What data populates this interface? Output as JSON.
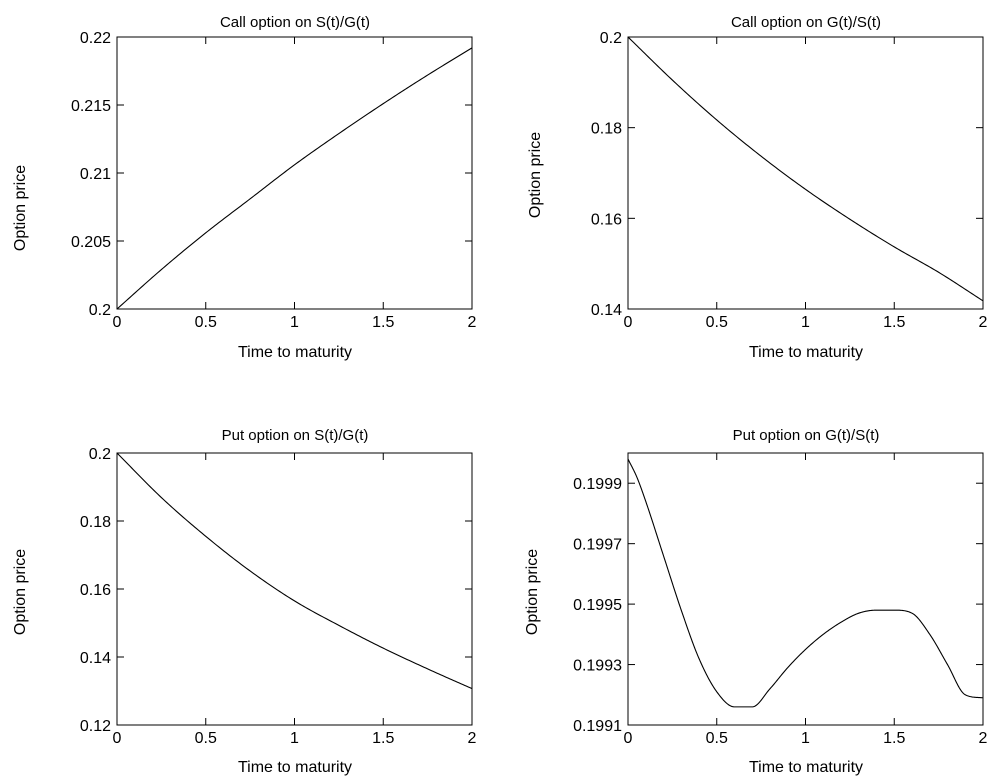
{
  "chart_data": [
    {
      "type": "line",
      "title": "Call option on S(t)/G(t)",
      "xlabel": "Time to maturity",
      "ylabel": "Option price",
      "xlim": [
        0,
        2
      ],
      "ylim": [
        0.2,
        0.22
      ],
      "xticks": [
        0,
        0.5,
        1,
        1.5,
        2
      ],
      "xtick_labels": [
        "0",
        "0.5",
        "1",
        "1.5",
        "2"
      ],
      "yticks": [
        0.2,
        0.205,
        0.21,
        0.215,
        0.22
      ],
      "ytick_labels": [
        "0.2",
        "0.205",
        "0.21",
        "0.215",
        "0.22"
      ],
      "grid": false,
      "series": [
        {
          "x": [
            0,
            0.25,
            0.5,
            0.75,
            1,
            1.25,
            1.5,
            1.75,
            2
          ],
          "y": [
            0.2,
            0.2029,
            0.2056,
            0.2081,
            0.2106,
            0.2129,
            0.2151,
            0.2172,
            0.2192
          ]
        }
      ]
    },
    {
      "type": "line",
      "title": "Call option on G(t)/S(t)",
      "xlabel": "Time to maturity",
      "ylabel": "Option price",
      "xlim": [
        0,
        2
      ],
      "ylim": [
        0.14,
        0.2
      ],
      "xticks": [
        0,
        0.5,
        1,
        1.5,
        2
      ],
      "xtick_labels": [
        "0",
        "0.5",
        "1",
        "1.5",
        "2"
      ],
      "yticks": [
        0.14,
        0.16,
        0.18,
        0.2
      ],
      "ytick_labels": [
        "0.14",
        "0.16",
        "0.18",
        "0.2"
      ],
      "grid": false,
      "series": [
        {
          "x": [
            0,
            0.25,
            0.5,
            0.75,
            1,
            1.25,
            1.5,
            1.75,
            2
          ],
          "y": [
            0.2,
            0.1905,
            0.1817,
            0.1737,
            0.1664,
            0.1598,
            0.1537,
            0.1481,
            0.1418
          ]
        }
      ]
    },
    {
      "type": "line",
      "title": "Put option on S(t)/G(t)",
      "xlabel": "Time to maturity",
      "ylabel": "Option price",
      "xlim": [
        0,
        2
      ],
      "ylim": [
        0.12,
        0.2
      ],
      "xticks": [
        0,
        0.5,
        1,
        1.5,
        2
      ],
      "xtick_labels": [
        "0",
        "0.5",
        "1",
        "1.5",
        "2"
      ],
      "yticks": [
        0.12,
        0.14,
        0.16,
        0.18,
        0.2
      ],
      "ytick_labels": [
        "0.12",
        "0.14",
        "0.16",
        "0.18",
        "0.2"
      ],
      "grid": false,
      "series": [
        {
          "x": [
            0,
            0.25,
            0.5,
            0.75,
            1,
            1.25,
            1.5,
            1.75,
            2
          ],
          "y": [
            0.2,
            0.1869,
            0.1755,
            0.1653,
            0.1565,
            0.1493,
            0.1426,
            0.1365,
            0.1307
          ]
        }
      ]
    },
    {
      "type": "line",
      "title": "Put option on G(t)/S(t)",
      "xlabel": "Time to maturity",
      "ylabel": "Option price",
      "xlim": [
        0,
        2
      ],
      "ylim": [
        0.1991,
        0.2
      ],
      "xticks": [
        0,
        0.5,
        1,
        1.5,
        2
      ],
      "xtick_labels": [
        "0",
        "0.5",
        "1",
        "1.5",
        "2"
      ],
      "yticks": [
        0.1991,
        0.1993,
        0.1995,
        0.1997,
        0.1999
      ],
      "ytick_labels": [
        "0.1991",
        "0.1993",
        "0.1995",
        "0.1997",
        "0.1999"
      ],
      "grid": false,
      "series": [
        {
          "x": [
            0,
            0.05,
            0.1,
            0.2,
            0.3,
            0.4,
            0.5,
            0.6,
            0.7,
            0.8,
            0.9,
            1.0,
            1.1,
            1.2,
            1.3,
            1.4,
            1.5,
            1.6,
            1.7,
            1.8,
            1.9,
            2.0
          ],
          "y": [
            0.19998,
            0.19992,
            0.19984,
            0.19966,
            0.19948,
            0.19932,
            0.19921,
            0.19916,
            0.19916,
            0.19922,
            0.19929,
            0.19935,
            0.1994,
            0.19944,
            0.19947,
            0.19948,
            0.19948,
            0.19947,
            0.1994,
            0.1993,
            0.1992,
            0.19919
          ]
        }
      ]
    }
  ]
}
